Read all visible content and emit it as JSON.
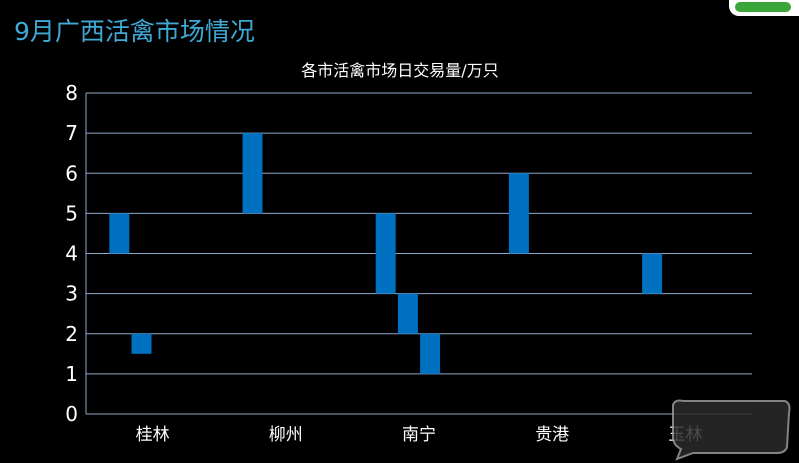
{
  "page": {
    "title": "9月广西活禽市场情况"
  },
  "colors": {
    "background": "#000000",
    "title": "#3fa9d6",
    "bar": "#0070c0",
    "grid": "#8ea9c8",
    "text": "#ffffff"
  },
  "icons": [
    "brand-logo-icon",
    "watermark-logo-icon"
  ],
  "chart_data": {
    "type": "bar",
    "subtype": "floating-range",
    "title": "各市活禽市场日交易量/万只",
    "xlabel": "",
    "ylabel": "",
    "ylim": [
      0,
      8
    ],
    "yticks": [
      "0",
      "1",
      "2",
      "3",
      "4",
      "5",
      "6",
      "7",
      "8"
    ],
    "grid": true,
    "legend": "none",
    "categories": [
      "桂林",
      "柳州",
      "南宁",
      "贵港",
      "玉林"
    ],
    "bars": [
      {
        "category": "桂林",
        "low": 4,
        "high": 5
      },
      {
        "category": "桂林",
        "low": 1.5,
        "high": 2
      },
      {
        "category": "柳州",
        "low": 5,
        "high": 7
      },
      {
        "category": "南宁",
        "low": 3,
        "high": 5
      },
      {
        "category": "南宁",
        "low": 2,
        "high": 3
      },
      {
        "category": "南宁",
        "low": 1,
        "high": 2
      },
      {
        "category": "贵港",
        "low": 4,
        "high": 6
      },
      {
        "category": "玉林",
        "low": 3,
        "high": 4
      }
    ]
  }
}
